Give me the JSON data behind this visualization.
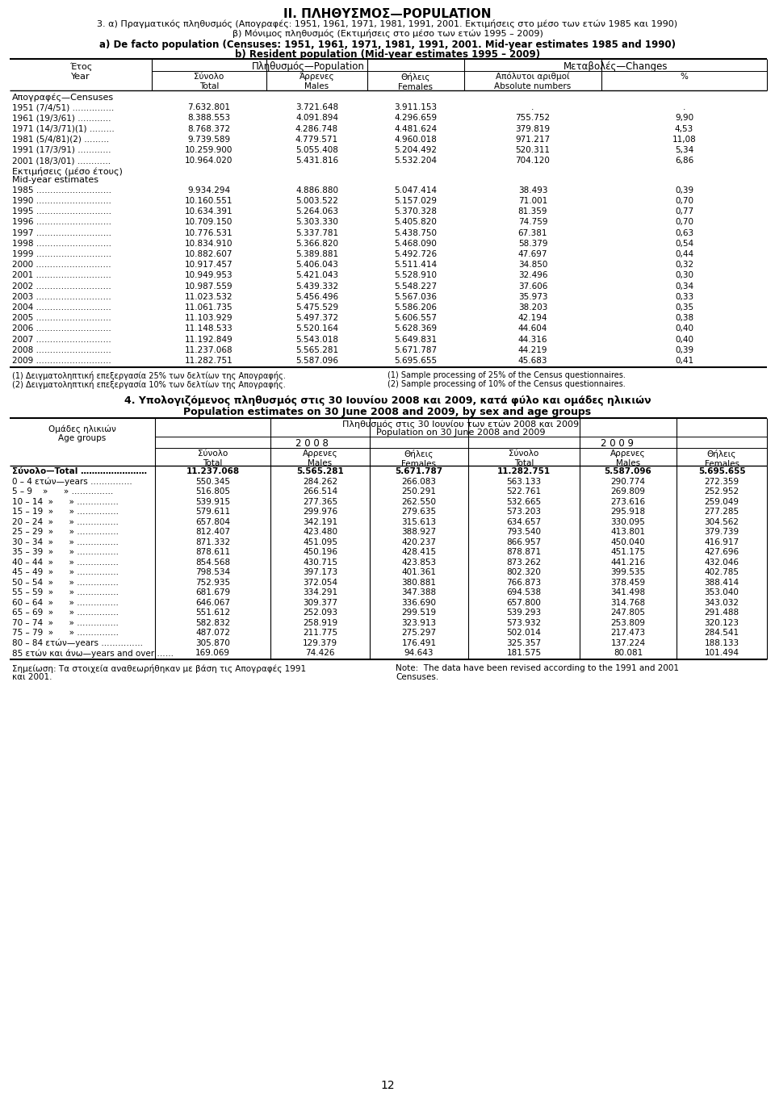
{
  "title_main": "II. ΠΛΗΘΥΣΜΟΣ—POPULATION",
  "subtitle1_gr": "3. α) Πραγματικός πληθυσμός (Απογραφές: 1951, 1961, 1971, 1981, 1991, 2001. Εκτιμήσεις στο μέσο των ετών 1985 και 1990)",
  "subtitle2_gr": "β) Μόνιμος πληθυσμός (Εκτιμήσεις στο μέσο των ετών 1995 – 2009)",
  "subtitle1_en": "a) De facto population (Censuses: 1951, 1961, 1971, 1981, 1991, 2001. Mid-year estimates 1985 and 1990)",
  "subtitle2_en": "b) Resident population (Mid-year estimates 1995 – 2009)",
  "table1_section1_header": "Απογραφές—Censuses",
  "table1_section1_rows": [
    [
      "1951 (7/4/51) ……………",
      "7.632.801",
      "3.721.648",
      "3.911.153",
      ".",
      "."
    ],
    [
      "1961 (19/3/61) …………",
      "8.388.553",
      "4.091.894",
      "4.296.659",
      "755.752",
      "9,90"
    ],
    [
      "1971 (14/3/71)(1) ………",
      "8.768.372",
      "4.286.748",
      "4.481.624",
      "379.819",
      "4,53"
    ],
    [
      "1981 (5/4/81)(2) ………",
      "9.739.589",
      "4.779.571",
      "4.960.018",
      "971.217",
      "11,08"
    ],
    [
      "1991 (17/3/91) …………",
      "10.259.900",
      "5.055.408",
      "5.204.492",
      "520.311",
      "5,34"
    ],
    [
      "2001 (18/3/01) …………",
      "10.964.020",
      "5.431.816",
      "5.532.204",
      "704.120",
      "6,86"
    ]
  ],
  "table1_section2_header_gr": "Εκτιμήσεις (μέσο έτους)",
  "table1_section2_header_en": "Mid-year estimates",
  "table1_section2_rows": [
    [
      "1985 ………………………",
      "9.934.294",
      "4.886.880",
      "5.047.414",
      "38.493",
      "0,39"
    ],
    [
      "1990 ………………………",
      "10.160.551",
      "5.003.522",
      "5.157.029",
      "71.001",
      "0,70"
    ],
    [
      "1995 ………………………",
      "10.634.391",
      "5.264.063",
      "5.370.328",
      "81.359",
      "0,77"
    ],
    [
      "1996 ………………………",
      "10.709.150",
      "5.303.330",
      "5.405.820",
      "74.759",
      "0,70"
    ],
    [
      "1997 ………………………",
      "10.776.531",
      "5.337.781",
      "5.438.750",
      "67.381",
      "0,63"
    ],
    [
      "1998 ………………………",
      "10.834.910",
      "5.366.820",
      "5.468.090",
      "58.379",
      "0,54"
    ],
    [
      "1999 ………………………",
      "10.882.607",
      "5.389.881",
      "5.492.726",
      "47.697",
      "0,44"
    ],
    [
      "2000 ………………………",
      "10.917.457",
      "5.406.043",
      "5.511.414",
      "34.850",
      "0,32"
    ],
    [
      "2001 ………………………",
      "10.949.953",
      "5.421.043",
      "5.528.910",
      "32.496",
      "0,30"
    ],
    [
      "2002 ………………………",
      "10.987.559",
      "5.439.332",
      "5.548.227",
      "37.606",
      "0,34"
    ],
    [
      "2003 ………………………",
      "11.023.532",
      "5.456.496",
      "5.567.036",
      "35.973",
      "0,33"
    ],
    [
      "2004 ………………………",
      "11.061.735",
      "5.475.529",
      "5.586.206",
      "38.203",
      "0,35"
    ],
    [
      "2005 ………………………",
      "11.103.929",
      "5.497.372",
      "5.606.557",
      "42.194",
      "0,38"
    ],
    [
      "2006 ………………………",
      "11.148.533",
      "5.520.164",
      "5.628.369",
      "44.604",
      "0,40"
    ],
    [
      "2007 ………………………",
      "11.192.849",
      "5.543.018",
      "5.649.831",
      "44.316",
      "0,40"
    ],
    [
      "2008 ………………………",
      "11.237.068",
      "5.565.281",
      "5.671.787",
      "44.219",
      "0,39"
    ],
    [
      "2009 ………………………",
      "11.282.751",
      "5.587.096",
      "5.695.655",
      "45.683",
      "0,41"
    ]
  ],
  "footnotes_gr": [
    "(1) Δειγματοληπτική επεξεργασία 25% των δελτίων της Απογραφής.",
    "(2) Δειγματοληπτική επεξεργασία 10% των δελτίων της Απογραφής."
  ],
  "footnotes_en": [
    "(1) Sample processing of 25% of the Census questionnaires.",
    "(2) Sample processing of 10% of the Census questionnaires."
  ],
  "section4_title_gr": "4. Υπολογιζόμενος πληθυσμός στις 30 Ιουνίου 2008 και 2009, κατά φύλο και ομάδες ηλικιών",
  "section4_title_en": "Population estimates on 30 June 2008 and 2009, by sex and age groups",
  "table2_header_gr": "Πληθυσμός στις 30 Ιουνίου των ετών 2008 και 2009",
  "table2_header_en": "Population on 30 June 2008 and 2009",
  "table2_col_sublabels": [
    "Σύνολο\nTotal",
    "Αρρενες\nMales",
    "Θήλεις\nFemales",
    "Σύνολο\nTotal",
    "Αρρενες\nMales",
    "Θήλεις\nFemales"
  ],
  "table2_years": [
    "2 0 0 8",
    "2 0 0 9"
  ],
  "table2_age_label_gr": "Ομάδες ηλικιών",
  "table2_age_label_en": "Age groups",
  "table2_total_row": [
    "Σύνολο—Total ……………………",
    "11.237.068",
    "5.565.281",
    "5.671.787",
    "11.282.751",
    "5.587.096",
    "5.695.655"
  ],
  "table2_rows": [
    [
      "0 – 4 ετών—years ……………",
      "550.345",
      "284.262",
      "266.083",
      "563.133",
      "290.774",
      "272.359"
    ],
    [
      "5 – 9    »      » ……………",
      "516.805",
      "266.514",
      "250.291",
      "522.761",
      "269.809",
      "252.952"
    ],
    [
      "10 – 14  »      » ……………",
      "539.915",
      "277.365",
      "262.550",
      "532.665",
      "273.616",
      "259.049"
    ],
    [
      "15 – 19  »      » ……………",
      "579.611",
      "299.976",
      "279.635",
      "573.203",
      "295.918",
      "277.285"
    ],
    [
      "20 – 24  »      » ……………",
      "657.804",
      "342.191",
      "315.613",
      "634.657",
      "330.095",
      "304.562"
    ],
    [
      "25 – 29  »      » ……………",
      "812.407",
      "423.480",
      "388.927",
      "793.540",
      "413.801",
      "379.739"
    ],
    [
      "30 – 34  »      » ……………",
      "871.332",
      "451.095",
      "420.237",
      "866.957",
      "450.040",
      "416.917"
    ],
    [
      "35 – 39  »      » ……………",
      "878.611",
      "450.196",
      "428.415",
      "878.871",
      "451.175",
      "427.696"
    ],
    [
      "40 – 44  »      » ……………",
      "854.568",
      "430.715",
      "423.853",
      "873.262",
      "441.216",
      "432.046"
    ],
    [
      "45 – 49  »      » ……………",
      "798.534",
      "397.173",
      "401.361",
      "802.320",
      "399.535",
      "402.785"
    ],
    [
      "50 – 54  »      » ……………",
      "752.935",
      "372.054",
      "380.881",
      "766.873",
      "378.459",
      "388.414"
    ],
    [
      "55 – 59  »      » ……………",
      "681.679",
      "334.291",
      "347.388",
      "694.538",
      "341.498",
      "353.040"
    ],
    [
      "60 – 64  »      » ……………",
      "646.067",
      "309.377",
      "336.690",
      "657.800",
      "314.768",
      "343.032"
    ],
    [
      "65 – 69  »      » ……………",
      "551.612",
      "252.093",
      "299.519",
      "539.293",
      "247.805",
      "291.488"
    ],
    [
      "70 – 74  »      » ……………",
      "582.832",
      "258.919",
      "323.913",
      "573.932",
      "253.809",
      "320.123"
    ],
    [
      "75 – 79  »      » ……………",
      "487.072",
      "211.775",
      "275.297",
      "502.014",
      "217.473",
      "284.541"
    ],
    [
      "80 – 84 ετών—years ……………",
      "305.870",
      "129.379",
      "176.491",
      "325.357",
      "137.224",
      "188.133"
    ],
    [
      "85 ετών και άνω—years and over ……",
      "169.069",
      "74.426",
      "94.643",
      "181.575",
      "80.081",
      "101.494"
    ]
  ],
  "footer_note_gr": "Σημείωση: Τα στοιχεία αναθεωρήθηκαν με βάση τις Απογραφές 1991",
  "footer_note_gr2": "και 2001.",
  "footer_note_en": "Note:  The data have been revised according to the 1991 and 2001",
  "footer_note_en2": "Censuses.",
  "page_number": "12"
}
